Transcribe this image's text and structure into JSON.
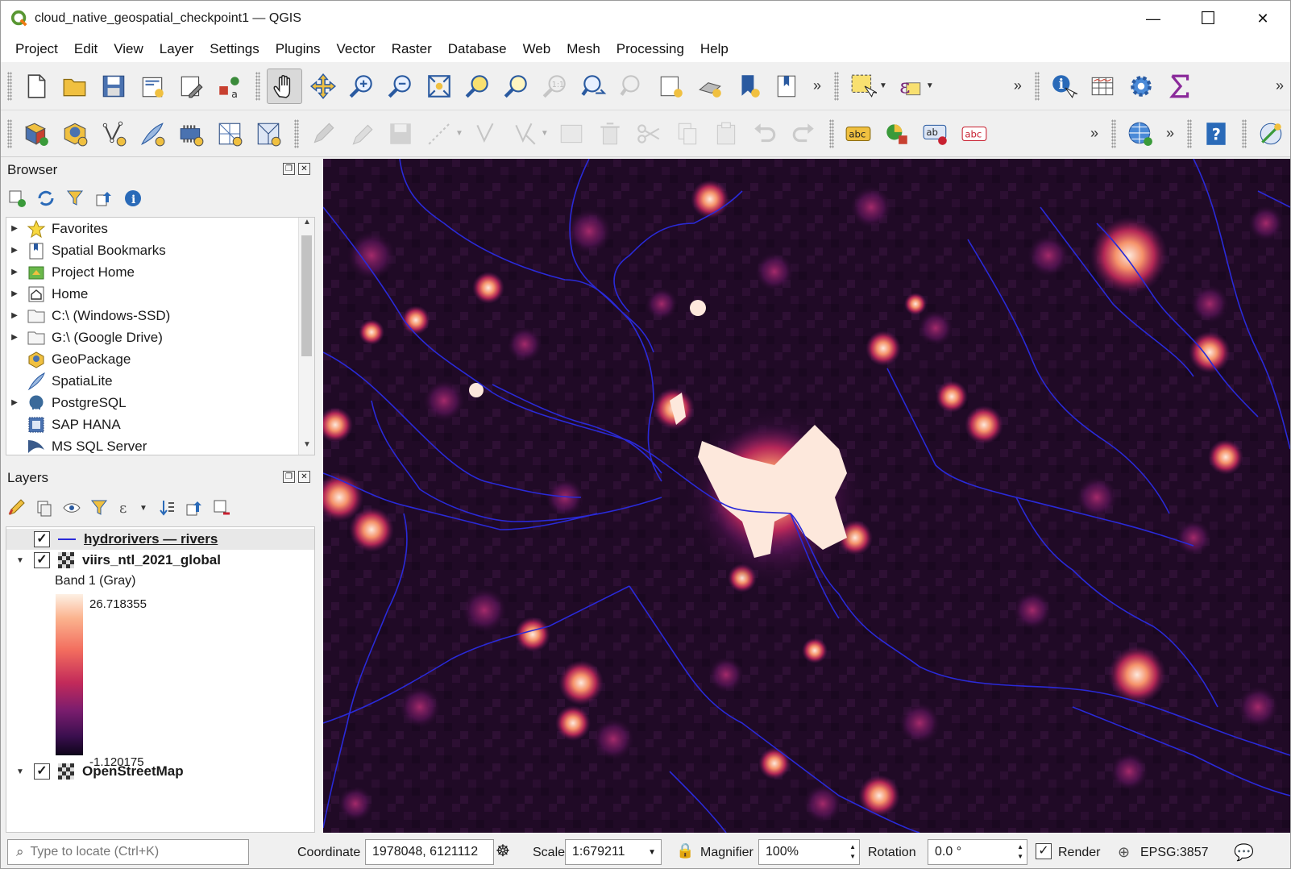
{
  "window": {
    "title": "cloud_native_geospatial_checkpoint1 — QGIS",
    "minimize": "—",
    "maximize": "☐",
    "close": "✕"
  },
  "menu": [
    "Project",
    "Edit",
    "View",
    "Layer",
    "Settings",
    "Plugins",
    "Vector",
    "Raster",
    "Database",
    "Web",
    "Mesh",
    "Processing",
    "Help"
  ],
  "toolbar": {
    "overflow": "»"
  },
  "browser": {
    "title": "Browser",
    "items": [
      {
        "label": "Favorites",
        "expandable": true,
        "icon": "star-icon"
      },
      {
        "label": "Spatial Bookmarks",
        "expandable": true,
        "icon": "bookmark-icon"
      },
      {
        "label": "Project Home",
        "expandable": true,
        "icon": "project-home-icon"
      },
      {
        "label": "Home",
        "expandable": true,
        "icon": "home-icon"
      },
      {
        "label": "C:\\ (Windows-SSD)",
        "expandable": true,
        "icon": "folder-icon"
      },
      {
        "label": "G:\\ (Google Drive)",
        "expandable": true,
        "icon": "folder-icon"
      },
      {
        "label": "GeoPackage",
        "expandable": false,
        "icon": "geopackage-icon"
      },
      {
        "label": "SpatiaLite",
        "expandable": false,
        "icon": "spatialite-icon"
      },
      {
        "label": "PostgreSQL",
        "expandable": true,
        "icon": "postgresql-icon"
      },
      {
        "label": "SAP HANA",
        "expandable": false,
        "icon": "sap-hana-icon"
      },
      {
        "label": "MS SQL Server",
        "expandable": false,
        "icon": "mssql-icon"
      }
    ]
  },
  "layers": {
    "title": "Layers",
    "items": [
      {
        "name": "hydrorivers — rivers",
        "checked": true,
        "selected": true
      },
      {
        "name": "viirs_ntl_2021_global",
        "checked": true,
        "expanded": true
      },
      {
        "name": "OpenStreetMap",
        "checked": true,
        "expanded": true
      }
    ],
    "legend": {
      "band": "Band 1 (Gray)",
      "max": "26.718355",
      "min": "-1.120175"
    }
  },
  "status": {
    "locate_placeholder": "Type to locate (Ctrl+K)",
    "coordinate_label": "Coordinate",
    "coordinate_value": "1978048, 6121112",
    "scale_label": "Scale",
    "scale_value": "1:679211",
    "magnifier_label": "Magnifier",
    "magnifier_value": "100%",
    "rotation_label": "Rotation",
    "rotation_value": "0.0 °",
    "render_label": "Render",
    "render_checked": true,
    "crs": "EPSG:3857"
  },
  "colors": {
    "river": "#2a2ad8",
    "map_background": "#1e0a24",
    "light_core": "#fde8dc"
  }
}
